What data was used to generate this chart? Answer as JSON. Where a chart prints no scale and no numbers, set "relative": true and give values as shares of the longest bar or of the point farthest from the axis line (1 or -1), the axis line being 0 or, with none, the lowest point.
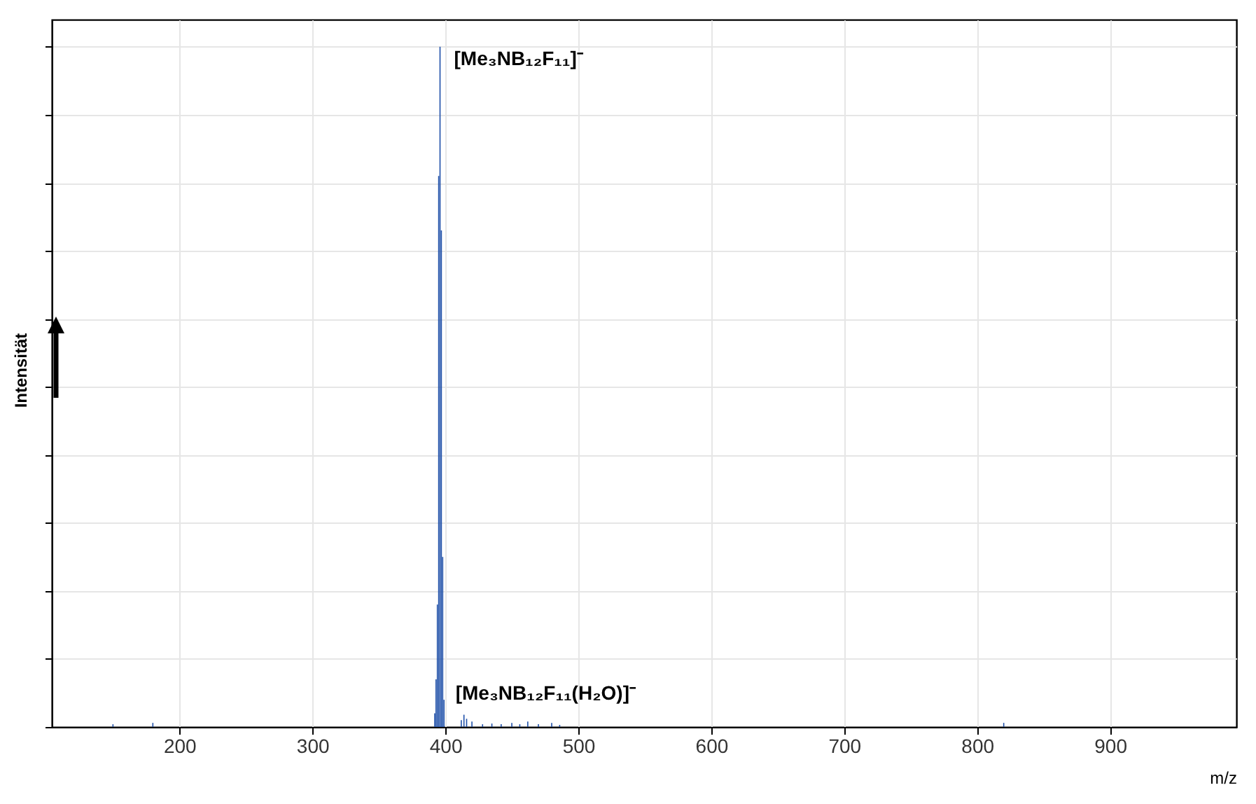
{
  "chart_data": {
    "type": "bar",
    "relative": true,
    "xlabel": "m/z",
    "ylabel": "Intensität",
    "x": [
      150,
      180,
      392,
      393,
      394,
      395,
      396,
      397,
      398,
      399,
      412,
      414,
      416,
      420,
      428,
      435,
      442,
      450,
      456,
      462,
      470,
      480,
      486,
      820
    ],
    "values": [
      0.004,
      0.006,
      0.02,
      0.07,
      0.18,
      0.81,
      1.0,
      0.73,
      0.25,
      0.04,
      0.01,
      0.018,
      0.012,
      0.008,
      0.004,
      0.005,
      0.004,
      0.006,
      0.004,
      0.008,
      0.004,
      0.006,
      0.003,
      0.006
    ],
    "color": "#1e4fa8",
    "xlim": [
      104,
      995
    ],
    "xticks": [
      200,
      300,
      400,
      500,
      600,
      700,
      800,
      900
    ],
    "grid": true,
    "annotations": [
      {
        "text": "[Me₃NB₁₂F₁₁]⁻",
        "x": 396,
        "y": 1
      },
      {
        "text": "[Me₃NB₁₂F₁₁(H₂O)]⁻",
        "x": 414,
        "y": 0.018
      }
    ]
  }
}
